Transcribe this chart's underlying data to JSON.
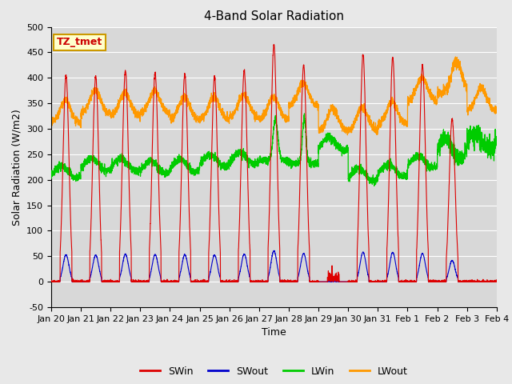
{
  "title": "4-Band Solar Radiation",
  "xlabel": "Time",
  "ylabel": "Solar Radiation (W/m2)",
  "ylim": [
    -50,
    500
  ],
  "yticks": [
    -50,
    0,
    50,
    100,
    150,
    200,
    250,
    300,
    350,
    400,
    450,
    500
  ],
  "background_color": "#e8e8e8",
  "plot_bg_color": "#d8d8d8",
  "grid_color": "#ffffff",
  "annotation_box": "TZ_tmet",
  "annotation_color": "#cc0000",
  "annotation_bg": "#ffffcc",
  "annotation_border": "#cc9900",
  "legend": [
    "SWin",
    "SWout",
    "LWin",
    "LWout"
  ],
  "legend_colors": [
    "#dd0000",
    "#0000cc",
    "#00cc00",
    "#ff9900"
  ],
  "n_days": 15,
  "title_fontsize": 11,
  "label_fontsize": 9,
  "tick_fontsize": 8,
  "tick_labels": [
    "Jan 20",
    "Jan 21",
    "Jan 22",
    "Jan 23",
    "Jan 24",
    "Jan 25",
    "Jan 26",
    "Jan 27",
    "Jan 28",
    "Jan 29",
    "Jan 30",
    "Jan 31",
    "Feb 1",
    "Feb 2",
    "Feb 3",
    "Feb 4"
  ]
}
